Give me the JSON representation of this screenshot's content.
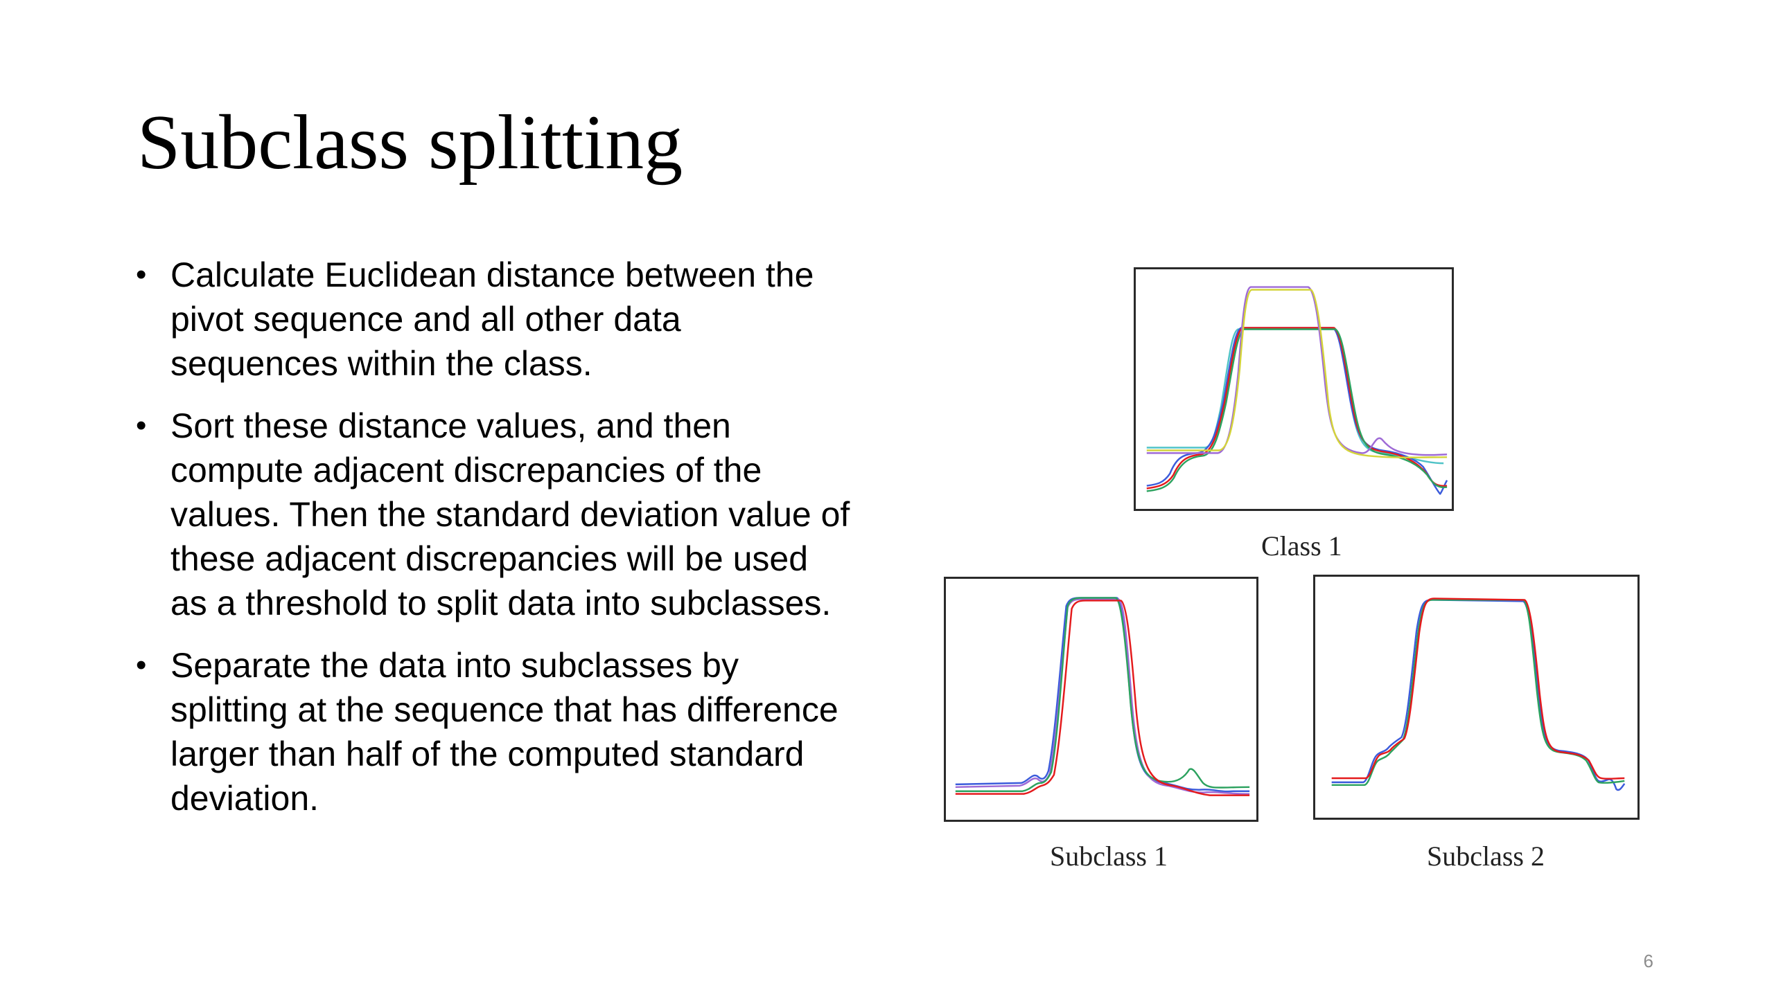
{
  "title": "Subclass splitting",
  "bullets": [
    "Calculate Euclidean distance between the pivot sequence and all other data sequences within the class.",
    "Sort these distance values, and then compute adjacent discrepancies of the values. Then the standard deviation value of these adjacent discrepancies will be used as a threshold to split data into subclasses.",
    "Separate the data into subclasses by splitting at the sequence that has difference larger than half of the computed standard deviation."
  ],
  "bullet_glyph": "•",
  "figure": {
    "class_caption": "Class 1",
    "subclass1_caption": "Subclass 1",
    "subclass2_caption": "Subclass 2",
    "line_colors": [
      "#2ca25f",
      "#e41a1c",
      "#3b5bdb",
      "#9e6ad6",
      "#d4d43a",
      "#4fc3c7"
    ]
  },
  "page_number": "6"
}
